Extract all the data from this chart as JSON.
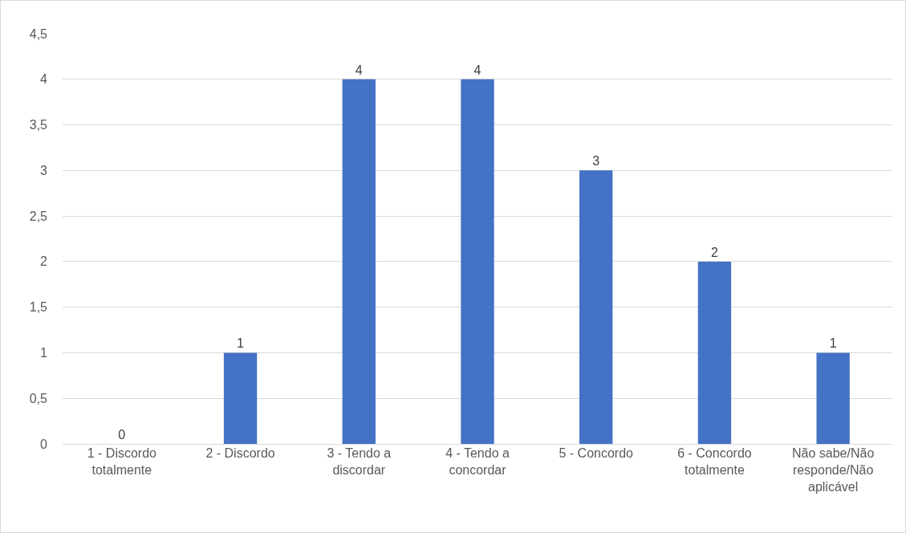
{
  "chart_data": {
    "type": "bar",
    "categories": [
      "1 - Discordo totalmente",
      "2 - Discordo",
      "3 - Tendo a discordar",
      "4 - Tendo a concordar",
      "5 - Concordo",
      "6 - Concordo totalmente",
      "Não sabe/Não responde/Não aplicável"
    ],
    "values": [
      0,
      1,
      4,
      4,
      3,
      2,
      1
    ],
    "color": "#4472c4",
    "data_labels": true,
    "grid": "y",
    "ylim": [
      0,
      4.5
    ],
    "yticks": [
      0,
      {
        "value": 0.5,
        "label": "0,5"
      },
      1,
      {
        "value": 1.5,
        "label": "1,5"
      },
      2,
      {
        "value": 2.5,
        "label": "2,5"
      },
      3,
      {
        "value": 3.5,
        "label": "3,5"
      },
      4,
      {
        "value": 4.5,
        "label": "4,5"
      }
    ]
  }
}
